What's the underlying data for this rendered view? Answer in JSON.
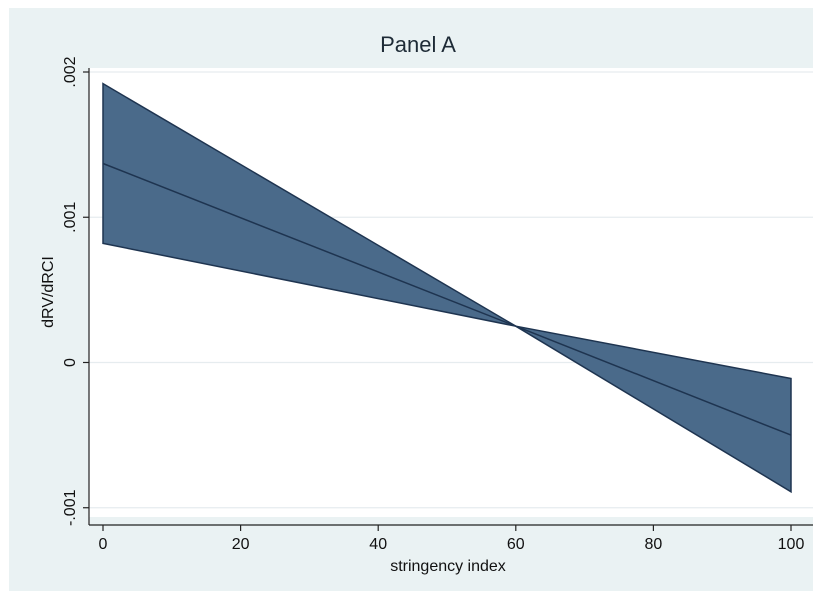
{
  "chart_data": {
    "type": "area",
    "title": "Panel A",
    "xlabel": "stringency index",
    "ylabel": "dRV/dRCI",
    "xlim": [
      0,
      100
    ],
    "ylim": [
      -0.00105,
      0.002
    ],
    "x_ticks": [
      0,
      20,
      40,
      60,
      80,
      100
    ],
    "x_tick_labels": [
      "0",
      "20",
      "40",
      "60",
      "80",
      "100"
    ],
    "y_ticks": [
      -0.001,
      0,
      0.001,
      0.002
    ],
    "y_tick_labels": [
      "-.001",
      "0",
      ".001",
      ".002"
    ],
    "grid": true,
    "colors": {
      "background": "#eaf2f3",
      "plot_area": "#ffffff",
      "band_fill": "#4a6a8a",
      "band_edge": "#1e3450",
      "line": "#1e3450",
      "grid": "#e6ecef"
    },
    "series": [
      {
        "name": "",
        "x": [
          0,
          60,
          100
        ],
        "y": [
          0.00137,
          0.00025,
          -0.0005
        ]
      },
      {
        "name": "",
        "x": [
          0,
          60,
          100
        ],
        "y": [
          0.00192,
          0.00025,
          -0.00089
        ]
      },
      {
        "name": "",
        "x": [
          0,
          60,
          100
        ],
        "y": [
          0.00082,
          0.00025,
          -0.00011
        ]
      }
    ]
  }
}
